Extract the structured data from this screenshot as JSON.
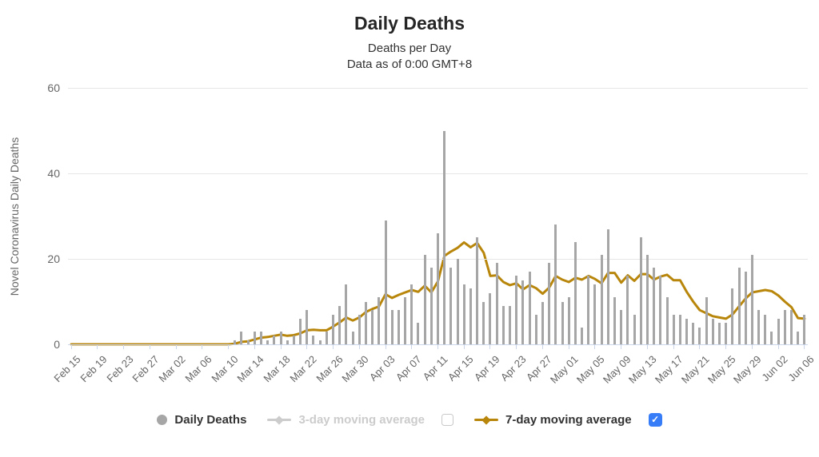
{
  "chart_data": {
    "type": "bar",
    "title": "Daily Deaths",
    "subtitle": [
      "Deaths per Day",
      "Data as of 0:00 GMT+8"
    ],
    "xlabel": "",
    "ylabel": "Novel Coronavirus Daily Deaths",
    "ylim": [
      0,
      60
    ],
    "y_ticks": [
      0,
      20,
      40,
      60
    ],
    "x_tick_interval_days": 4,
    "grid": "horizontal-only",
    "legend_position": "bottom",
    "axis_line_color": "#ccd6eb",
    "gridline_color": "#e6e6e6",
    "categories": [
      "Feb 15",
      "Feb 16",
      "Feb 17",
      "Feb 18",
      "Feb 19",
      "Feb 20",
      "Feb 21",
      "Feb 22",
      "Feb 23",
      "Feb 24",
      "Feb 25",
      "Feb 26",
      "Feb 27",
      "Feb 28",
      "Feb 29",
      "Mar 01",
      "Mar 02",
      "Mar 03",
      "Mar 04",
      "Mar 05",
      "Mar 06",
      "Mar 07",
      "Mar 08",
      "Mar 09",
      "Mar 10",
      "Mar 11",
      "Mar 12",
      "Mar 13",
      "Mar 14",
      "Mar 15",
      "Mar 16",
      "Mar 17",
      "Mar 18",
      "Mar 19",
      "Mar 20",
      "Mar 21",
      "Mar 22",
      "Mar 23",
      "Mar 24",
      "Mar 25",
      "Mar 26",
      "Mar 27",
      "Mar 28",
      "Mar 29",
      "Mar 30",
      "Mar 31",
      "Apr 01",
      "Apr 02",
      "Apr 03",
      "Apr 04",
      "Apr 05",
      "Apr 06",
      "Apr 07",
      "Apr 08",
      "Apr 09",
      "Apr 10",
      "Apr 11",
      "Apr 12",
      "Apr 13",
      "Apr 14",
      "Apr 15",
      "Apr 16",
      "Apr 17",
      "Apr 18",
      "Apr 19",
      "Apr 20",
      "Apr 21",
      "Apr 22",
      "Apr 23",
      "Apr 24",
      "Apr 25",
      "Apr 26",
      "Apr 27",
      "Apr 28",
      "Apr 29",
      "Apr 30",
      "May 01",
      "May 02",
      "May 03",
      "May 04",
      "May 05",
      "May 06",
      "May 07",
      "May 08",
      "May 09",
      "May 10",
      "May 11",
      "May 12",
      "May 13",
      "May 14",
      "May 15",
      "May 16",
      "May 17",
      "May 18",
      "May 19",
      "May 20",
      "May 21",
      "May 22",
      "May 23",
      "May 24",
      "May 25",
      "May 26",
      "May 27",
      "May 28",
      "May 29",
      "May 30",
      "May 31",
      "Jun 01",
      "Jun 02",
      "Jun 03",
      "Jun 04",
      "Jun 05",
      "Jun 06"
    ],
    "series": [
      {
        "name": "Daily Deaths",
        "type": "column",
        "color": "#a6a6a6",
        "visible": true,
        "checkbox": "none",
        "values": [
          0,
          0,
          0,
          0,
          0,
          0,
          0,
          0,
          0,
          0,
          0,
          0,
          0,
          0,
          0,
          0,
          0,
          0,
          0,
          0,
          0,
          0,
          0,
          0,
          0,
          1,
          3,
          1,
          3,
          3,
          1,
          2,
          3,
          1,
          2,
          6,
          8,
          2,
          1,
          3,
          7,
          9,
          14,
          3,
          7,
          10,
          8,
          11,
          29,
          8,
          8,
          11,
          14,
          5,
          21,
          18,
          26,
          50,
          18,
          20,
          14,
          13,
          25,
          10,
          12,
          19,
          9,
          9,
          16,
          15,
          17,
          7,
          10,
          19,
          28,
          10,
          11,
          24,
          4,
          16,
          14,
          21,
          27,
          11,
          8,
          16,
          7,
          25,
          21,
          18,
          16,
          11,
          7,
          7,
          6,
          5,
          4,
          11,
          6,
          5,
          5,
          13,
          18,
          17,
          21,
          8,
          7,
          3,
          6,
          8,
          8,
          3,
          7
        ]
      },
      {
        "name": "3-day moving average",
        "type": "spline",
        "color": "#cccccc",
        "visible": false,
        "checkbox": "unchecked",
        "values": null
      },
      {
        "name": "7-day moving average",
        "type": "spline",
        "color": "#b8860b",
        "visible": true,
        "checkbox": "checked",
        "derived_from": "trailing 7-day mean of Daily Deaths"
      }
    ]
  },
  "legend": {
    "checked_glyph": "✓",
    "checkbox_checked_color": "#377df7"
  }
}
